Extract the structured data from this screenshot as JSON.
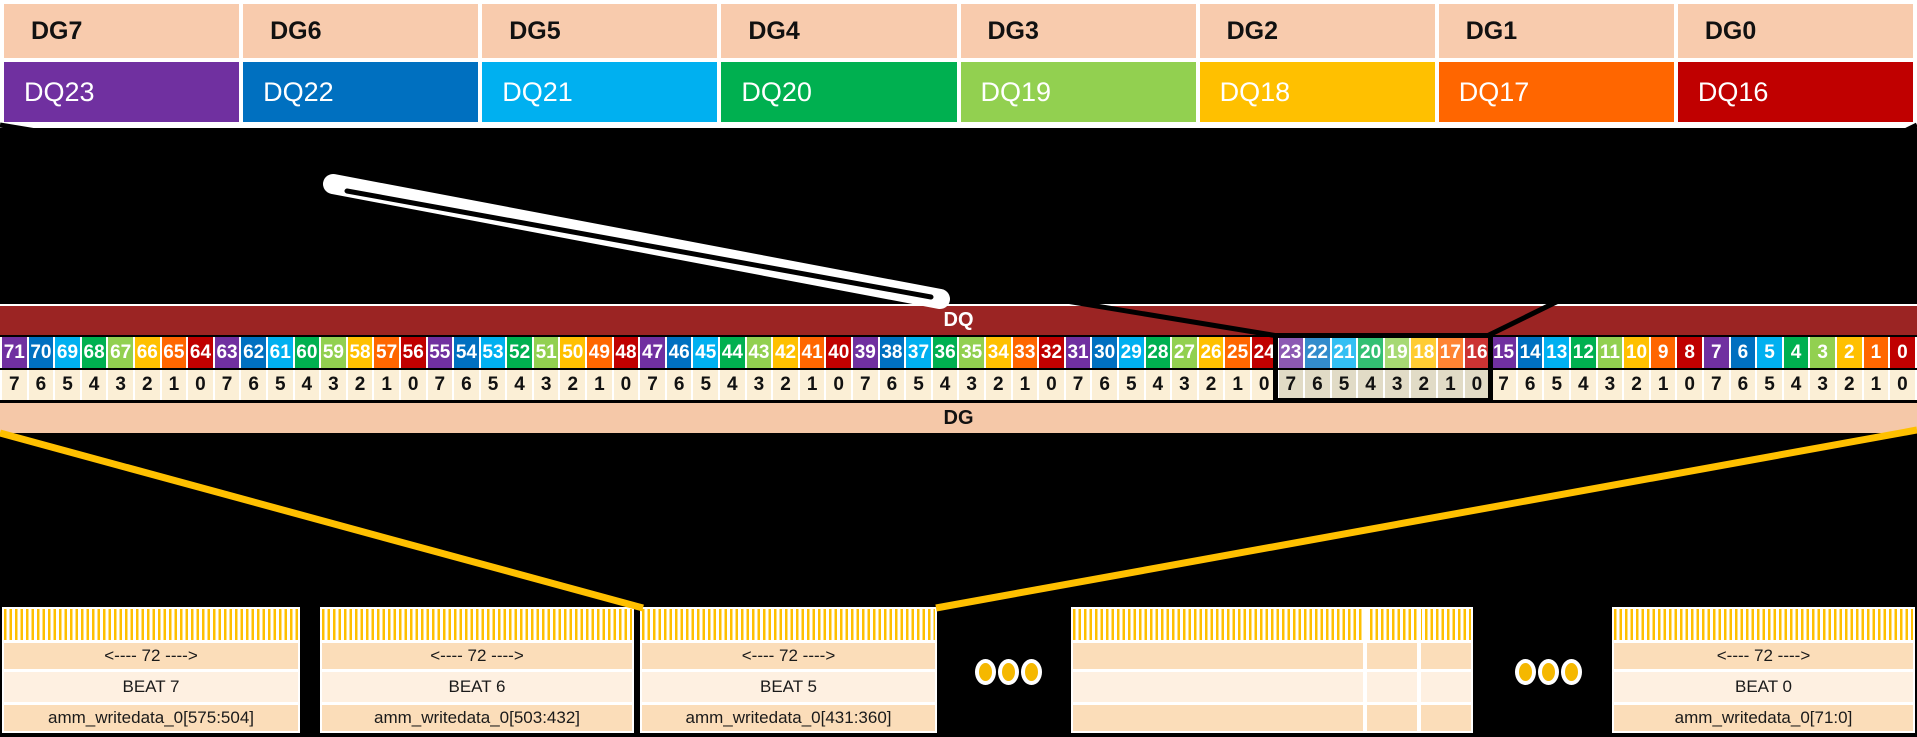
{
  "page": {
    "background": "#000000"
  },
  "top_table": {
    "dg_color": "#F8CBAD",
    "dg_row": [
      "DG7",
      "DG6",
      "DG5",
      "DG4",
      "DG3",
      "DG2",
      "DG1",
      "DG0"
    ],
    "dq_row": [
      {
        "label": "DQ23",
        "color": "#7030A0"
      },
      {
        "label": "DQ22",
        "color": "#0070C0"
      },
      {
        "label": "DQ21",
        "color": "#00B0F0"
      },
      {
        "label": "DQ20",
        "color": "#00B050"
      },
      {
        "label": "DQ19",
        "color": "#92D050"
      },
      {
        "label": "DQ18",
        "color": "#FFC000"
      },
      {
        "label": "DQ17",
        "color": "#FF6600"
      },
      {
        "label": "DQ16",
        "color": "#C00000"
      }
    ]
  },
  "bit_strip": {
    "dq_header": "DQ",
    "dq_header_color": "#9B2423",
    "dg_footer": "DG",
    "dg_footer_color": "#F5C8A8",
    "msb": 71,
    "lsb": 0,
    "lane_palette": [
      "#C00000",
      "#FF6600",
      "#FFC000",
      "#92D050",
      "#00B050",
      "#00B0F0",
      "#0070C0",
      "#7030A0"
    ],
    "sub_row_bg": "#FBEFD6",
    "highlight": {
      "msb": 23,
      "lsb": 16,
      "sub_row_bg": "#E1DBC6"
    }
  },
  "connectors": {
    "funnel_color": "#FFC000",
    "callout_color": "#000000",
    "ribbon_color": "#FFFFFF"
  },
  "beat_section": {
    "width_label": "<---- 72 ---->",
    "boxes": [
      {
        "beat": "BEAT 7",
        "signal": "amm_writedata_0[575:504]"
      },
      {
        "beat": "BEAT 6",
        "signal": "amm_writedata_0[503:432]"
      },
      {
        "beat": "BEAT 5",
        "signal": "amm_writedata_0[431:360]"
      },
      {
        "beat": "BEAT 0",
        "signal": "amm_writedata_0[71:0]"
      }
    ],
    "ellipsis_dot_color": "#F5B800"
  }
}
